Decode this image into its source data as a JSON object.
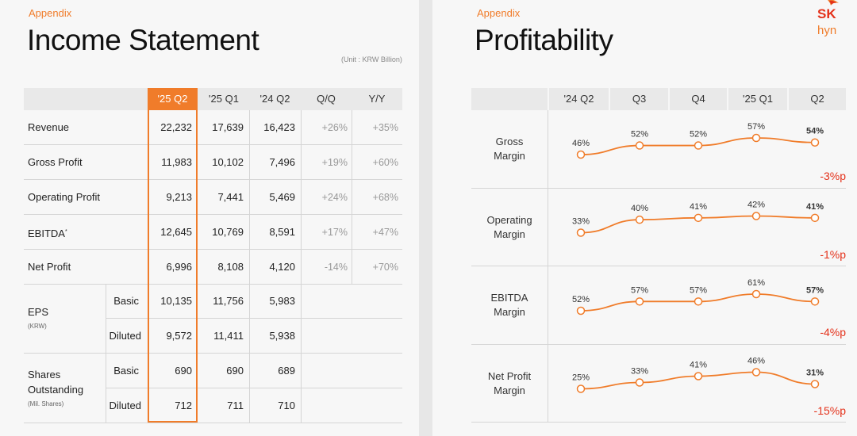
{
  "left": {
    "appendix": "Appendix",
    "title": "Income Statement",
    "unit": "(Unit : KRW Billion)",
    "headers": [
      "'25 Q2",
      "'25 Q1",
      "'24 Q2",
      "Q/Q",
      "Y/Y"
    ],
    "rows": [
      {
        "label": "Revenue",
        "values": [
          "22,232",
          "17,639",
          "16,423"
        ],
        "qq": "+26%",
        "yy": "+35%"
      },
      {
        "label": "Gross Profit",
        "values": [
          "11,983",
          "10,102",
          "7,496"
        ],
        "qq": "+19%",
        "yy": "+60%"
      },
      {
        "label": "Operating Profit",
        "values": [
          "9,213",
          "7,441",
          "5,469"
        ],
        "qq": "+24%",
        "yy": "+68%"
      },
      {
        "label": "EBITDA",
        "sup": "*",
        "values": [
          "12,645",
          "10,769",
          "8,591"
        ],
        "qq": "+17%",
        "yy": "+47%"
      },
      {
        "label": "Net Profit",
        "values": [
          "6,996",
          "8,108",
          "4,120"
        ],
        "qq": "-14%",
        "yy": "+70%"
      }
    ],
    "eps": {
      "label": "EPS",
      "note": "(KRW)",
      "basic": {
        "label": "Basic",
        "values": [
          "10,135",
          "11,756",
          "5,983"
        ]
      },
      "diluted": {
        "label": "Diluted",
        "values": [
          "9,572",
          "11,411",
          "5,938"
        ]
      }
    },
    "shares": {
      "label_line1": "Shares",
      "label_line2": "Outstanding",
      "note": "(Mil. Shares)",
      "basic": {
        "label": "Basic",
        "values": [
          "690",
          "690",
          "689"
        ]
      },
      "diluted": {
        "label": "Diluted",
        "values": [
          "712",
          "711",
          "710"
        ]
      }
    }
  },
  "right": {
    "appendix": "Appendix",
    "title": "Profitability",
    "logo_sk": "SK",
    "logo_hynix": "hyn",
    "accent": "#f07c2a",
    "negative": "#e4311a",
    "headers": [
      "'24 Q2",
      "Q3",
      "Q4",
      "'25 Q1",
      "Q2"
    ],
    "margins": [
      {
        "line1": "Gross",
        "line2": "Margin",
        "labels": [
          "46%",
          "52%",
          "52%",
          "57%",
          "54%"
        ],
        "values": [
          46,
          52,
          52,
          57,
          54
        ],
        "delta": "-3%p"
      },
      {
        "line1": "Operating",
        "line2": "Margin",
        "labels": [
          "33%",
          "40%",
          "41%",
          "42%",
          "41%"
        ],
        "values": [
          33,
          40,
          41,
          42,
          41
        ],
        "delta": "-1%p"
      },
      {
        "line1": "EBITDA",
        "line2": "Margin",
        "labels": [
          "52%",
          "57%",
          "57%",
          "61%",
          "57%"
        ],
        "values": [
          52,
          57,
          57,
          61,
          57
        ],
        "delta": "-4%p"
      },
      {
        "line1": "Net Profit",
        "line2": "Margin",
        "labels": [
          "25%",
          "33%",
          "41%",
          "46%",
          "31%"
        ],
        "values": [
          25,
          33,
          41,
          46,
          31
        ],
        "delta": "-15%p"
      }
    ]
  }
}
